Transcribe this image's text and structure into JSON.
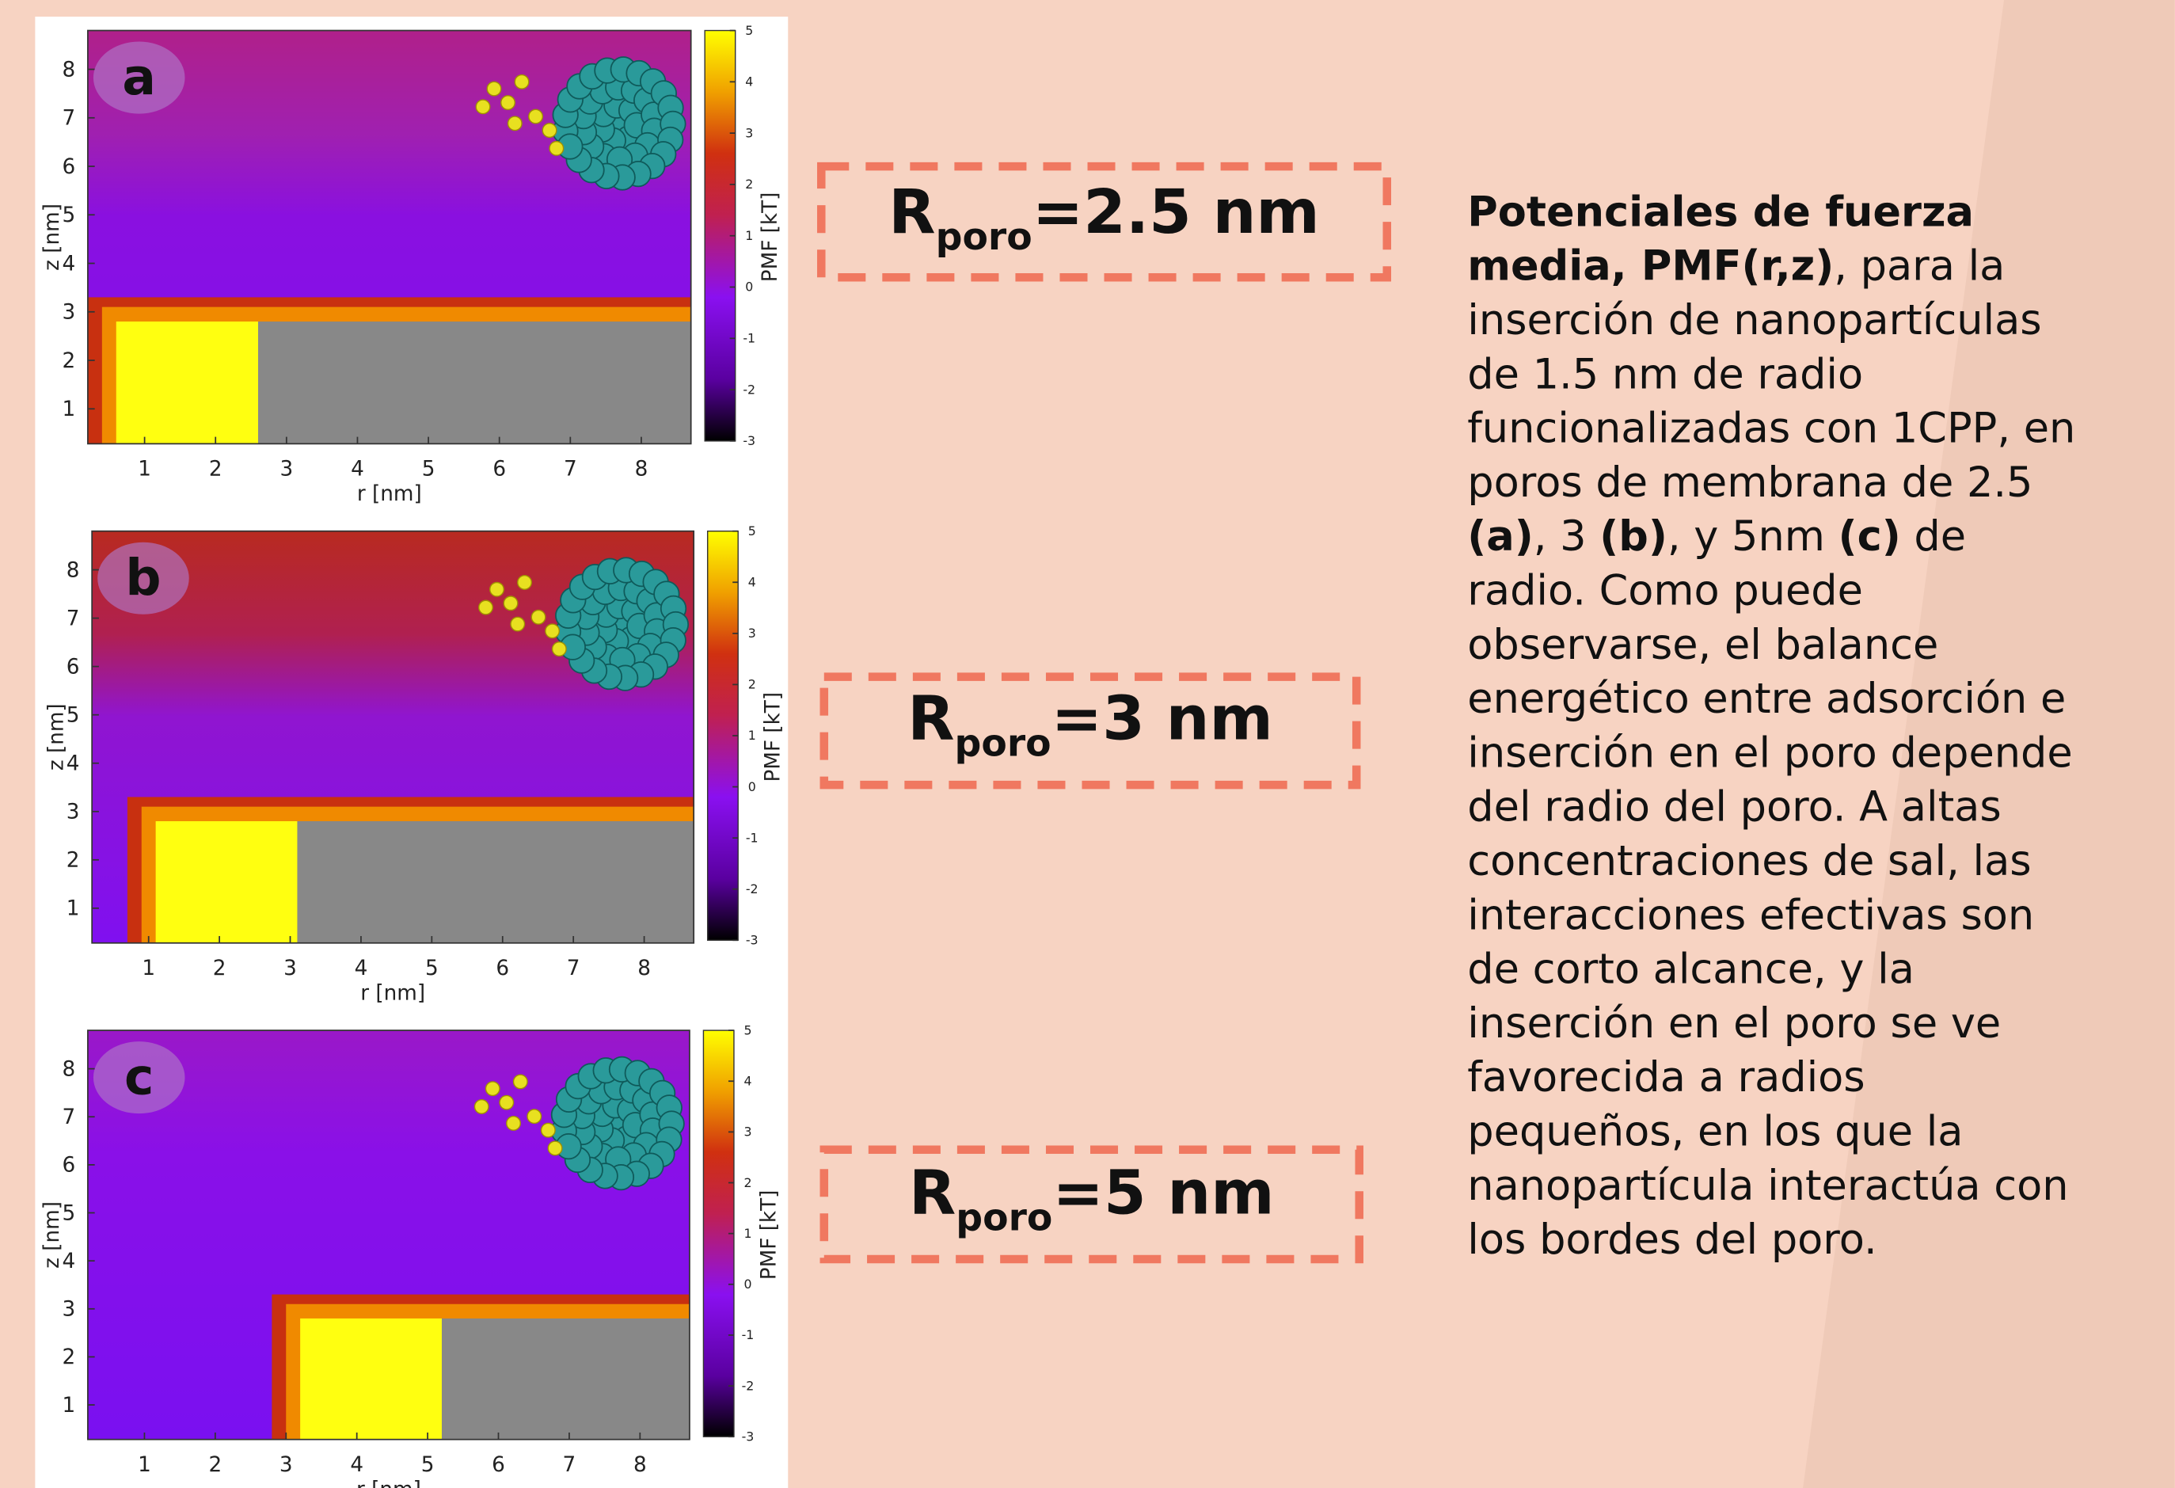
{
  "panels": [
    {
      "label": "a",
      "x_label": "r [nm]",
      "y_label": "z [nm]",
      "colorbar_label": "PMF [kT]",
      "xlim": [
        0.2,
        8.7
      ],
      "ylim": [
        0.28,
        8.8
      ],
      "xticks": [
        1,
        2,
        3,
        4,
        5,
        6,
        7,
        8
      ],
      "yticks": [
        1,
        2,
        3,
        4,
        5,
        6,
        7,
        8
      ],
      "colorbar_lim": [
        -3,
        5
      ],
      "colorbar_ticks": [
        -3,
        -2,
        -1,
        0,
        1,
        2,
        3,
        4,
        5
      ]
    },
    {
      "label": "b",
      "x_label": "r [nm]",
      "y_label": "z [nm]",
      "colorbar_label": "PMF [kT]",
      "xlim": [
        0.2,
        8.7
      ],
      "ylim": [
        0.28,
        8.8
      ],
      "xticks": [
        1,
        2,
        3,
        4,
        5,
        6,
        7,
        8
      ],
      "yticks": [
        1,
        2,
        3,
        4,
        5,
        6,
        7,
        8
      ],
      "colorbar_lim": [
        -3,
        5
      ],
      "colorbar_ticks": [
        -3,
        -2,
        -1,
        0,
        1,
        2,
        3,
        4,
        5
      ]
    },
    {
      "label": "c",
      "x_label": "r [nm]",
      "y_label": "z [nm]",
      "colorbar_label": "PMF [kT]",
      "xlim": [
        0.2,
        8.7
      ],
      "ylim": [
        0.28,
        8.8
      ],
      "xticks": [
        1,
        2,
        3,
        4,
        5,
        6,
        7,
        8
      ],
      "yticks": [
        1,
        2,
        3,
        4,
        5,
        6,
        7,
        8
      ],
      "colorbar_lim": [
        -3,
        5
      ],
      "colorbar_ticks": [
        -3,
        -2,
        -1,
        0,
        1,
        2,
        3,
        4,
        5
      ]
    }
  ],
  "radius_labels": [
    {
      "symbol": "R",
      "subscript": "poro",
      "text": "=2.5 nm"
    },
    {
      "symbol": "R",
      "subscript": "poro",
      "text": "=3 nm"
    },
    {
      "symbol": "R",
      "subscript": "poro",
      "text": "=5 nm"
    }
  ],
  "caption": {
    "lines": [
      [
        {
          "text": "Potenciales de fuerza",
          "bold": true
        }
      ],
      [
        {
          "text": "media, PMF(r,z)",
          "bold": true
        },
        {
          "text": ", para la"
        }
      ],
      [
        {
          "text": "inserción de nanopartículas"
        }
      ],
      [
        {
          "text": "de 1.5 nm de radio"
        }
      ],
      [
        {
          "text": "funcionalizadas con 1CPP, en"
        }
      ],
      [
        {
          "text": "poros de membrana de 2.5"
        }
      ],
      [
        {
          "text": "(a)",
          "bold": true
        },
        {
          "text": ", 3 "
        },
        {
          "text": "(b)",
          "bold": true
        },
        {
          "text": ", y 5nm "
        },
        {
          "text": "(c)",
          "bold": true
        },
        {
          "text": " de"
        }
      ],
      [
        {
          "text": "radio. Como puede"
        }
      ],
      [
        {
          "text": "observarse, el balance"
        }
      ],
      [
        {
          "text": "energético entre adsorción e"
        }
      ],
      [
        {
          "text": "inserción en el poro depende"
        }
      ],
      [
        {
          "text": "del radio del poro. A altas"
        }
      ],
      [
        {
          "text": "concentraciones de sal, las"
        }
      ],
      [
        {
          "text": "interacciones efectivas son"
        }
      ],
      [
        {
          "text": "de corto alcance, y la"
        }
      ],
      [
        {
          "text": "inserción en el poro se ve"
        }
      ],
      [
        {
          "text": "favorecida a radios"
        }
      ],
      [
        {
          "text": "pequeños, en los que la"
        }
      ],
      [
        {
          "text": "nanopartícula interactúa con"
        }
      ],
      [
        {
          "text": "los bordes del poro."
        }
      ]
    ]
  }
}
